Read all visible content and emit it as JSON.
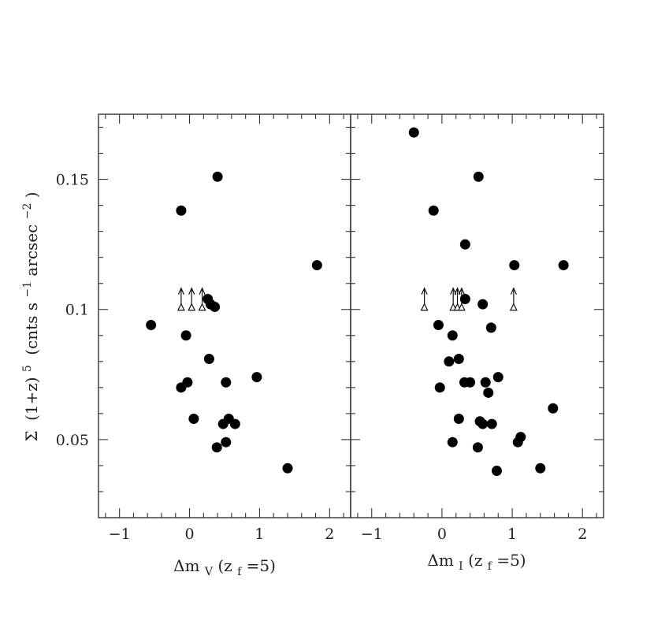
{
  "figure": {
    "ylabel": {
      "sym": "Σ",
      "paren": "(1+z)",
      "exp": "5",
      "units_a": "(cnts s",
      "units_exp1": "−1",
      "units_b": " arcsec",
      "units_exp2": "−2",
      "units_c": ")"
    },
    "left_xlabel": {
      "prefix": "Δm",
      "sub": "V",
      "mid": " (z",
      "sub2": "f",
      "suffix": "=5)"
    },
    "right_xlabel": {
      "prefix": "Δm",
      "sub": "I",
      "mid": " (z",
      "sub2": "f",
      "suffix": "=5)"
    }
  },
  "chart_data": [
    {
      "type": "scatter",
      "panel": "left",
      "xlim": [
        -1.3,
        2.3
      ],
      "ylim": [
        0.02,
        0.175
      ],
      "xticks": [
        -1,
        0,
        1,
        2
      ],
      "xtick_labels": [
        "−1",
        "0",
        "1",
        "2"
      ],
      "yticks": [
        0.05,
        0.1,
        0.15
      ],
      "ytick_labels": [
        "0.05",
        "0.1",
        "0.15"
      ],
      "points": [
        {
          "x": 0.4,
          "y": 0.151
        },
        {
          "x": -0.12,
          "y": 0.138
        },
        {
          "x": 1.82,
          "y": 0.117
        },
        {
          "x": 0.26,
          "y": 0.104
        },
        {
          "x": 0.3,
          "y": 0.102
        },
        {
          "x": 0.36,
          "y": 0.101
        },
        {
          "x": -0.55,
          "y": 0.094
        },
        {
          "x": -0.05,
          "y": 0.09
        },
        {
          "x": 0.28,
          "y": 0.081
        },
        {
          "x": 0.96,
          "y": 0.074
        },
        {
          "x": -0.03,
          "y": 0.072
        },
        {
          "x": 0.52,
          "y": 0.072
        },
        {
          "x": -0.12,
          "y": 0.07
        },
        {
          "x": 0.06,
          "y": 0.058
        },
        {
          "x": 0.56,
          "y": 0.058
        },
        {
          "x": 0.48,
          "y": 0.056
        },
        {
          "x": 0.65,
          "y": 0.056
        },
        {
          "x": 0.52,
          "y": 0.049
        },
        {
          "x": 0.39,
          "y": 0.047
        },
        {
          "x": 1.4,
          "y": 0.039
        }
      ],
      "lower_limits": [
        {
          "x": -0.12,
          "y": 0.1
        },
        {
          "x": 0.03,
          "y": 0.1
        },
        {
          "x": 0.18,
          "y": 0.1
        }
      ]
    },
    {
      "type": "scatter",
      "panel": "right",
      "xlim": [
        -1.3,
        2.3
      ],
      "ylim": [
        0.02,
        0.175
      ],
      "xticks": [
        -1,
        0,
        1,
        2
      ],
      "xtick_labels": [
        "−1",
        "0",
        "1",
        "2"
      ],
      "points": [
        {
          "x": -0.4,
          "y": 0.168
        },
        {
          "x": 0.52,
          "y": 0.151
        },
        {
          "x": -0.12,
          "y": 0.138
        },
        {
          "x": 0.33,
          "y": 0.125
        },
        {
          "x": 1.03,
          "y": 0.117
        },
        {
          "x": 1.73,
          "y": 0.117
        },
        {
          "x": 0.33,
          "y": 0.104
        },
        {
          "x": 0.58,
          "y": 0.102
        },
        {
          "x": -0.05,
          "y": 0.094
        },
        {
          "x": 0.15,
          "y": 0.09
        },
        {
          "x": 0.7,
          "y": 0.093
        },
        {
          "x": 0.24,
          "y": 0.081
        },
        {
          "x": 0.1,
          "y": 0.08
        },
        {
          "x": 0.8,
          "y": 0.074
        },
        {
          "x": 0.32,
          "y": 0.072
        },
        {
          "x": 0.4,
          "y": 0.072
        },
        {
          "x": 0.62,
          "y": 0.072
        },
        {
          "x": -0.03,
          "y": 0.07
        },
        {
          "x": 0.66,
          "y": 0.068
        },
        {
          "x": 1.58,
          "y": 0.062
        },
        {
          "x": 0.24,
          "y": 0.058
        },
        {
          "x": 0.54,
          "y": 0.057
        },
        {
          "x": 0.58,
          "y": 0.056
        },
        {
          "x": 0.71,
          "y": 0.056
        },
        {
          "x": 1.12,
          "y": 0.051
        },
        {
          "x": 0.15,
          "y": 0.049
        },
        {
          "x": 1.08,
          "y": 0.049
        },
        {
          "x": 0.51,
          "y": 0.047
        },
        {
          "x": 0.78,
          "y": 0.038
        },
        {
          "x": 1.4,
          "y": 0.039
        }
      ],
      "lower_limits": [
        {
          "x": -0.25,
          "y": 0.1
        },
        {
          "x": 0.16,
          "y": 0.1
        },
        {
          "x": 0.22,
          "y": 0.1
        },
        {
          "x": 0.28,
          "y": 0.1
        },
        {
          "x": 1.02,
          "y": 0.1
        }
      ]
    }
  ]
}
